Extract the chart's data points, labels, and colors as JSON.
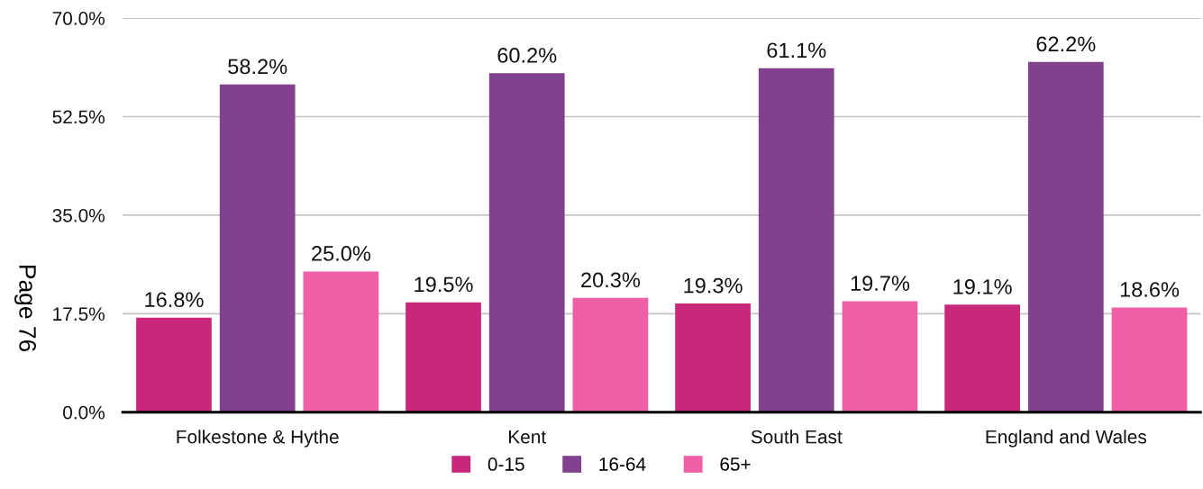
{
  "chart_data": {
    "type": "bar",
    "categories": [
      "Folkestone & Hythe",
      "Kent",
      "South East",
      "England and Wales"
    ],
    "series": [
      {
        "name": "0-15",
        "color": "#c9287a",
        "values": [
          16.8,
          19.5,
          19.3,
          19.1
        ],
        "value_labels": [
          "16.8%",
          "19.5%",
          "19.3%",
          "19.1%"
        ]
      },
      {
        "name": "16-64",
        "color": "#82418f",
        "values": [
          58.2,
          60.2,
          61.1,
          62.2
        ],
        "value_labels": [
          "58.2%",
          "60.2%",
          "61.1%",
          "62.2%"
        ]
      },
      {
        "name": "65+",
        "color": "#ee5fa6",
        "values": [
          25.0,
          20.3,
          19.7,
          18.6
        ],
        "value_labels": [
          "25.0%",
          "20.3%",
          "19.7%",
          "18.6%"
        ]
      }
    ],
    "ylim": [
      0,
      70
    ],
    "yticks": [
      {
        "value": 0,
        "label": "0.0%"
      },
      {
        "value": 17.5,
        "label": "17.5%"
      },
      {
        "value": 35,
        "label": "35.0%"
      },
      {
        "value": 52.5,
        "label": "52.5%"
      },
      {
        "value": 70,
        "label": "70.0%"
      }
    ],
    "grid": "y",
    "legend": "bottom",
    "annotations": [
      "Page 76"
    ]
  }
}
